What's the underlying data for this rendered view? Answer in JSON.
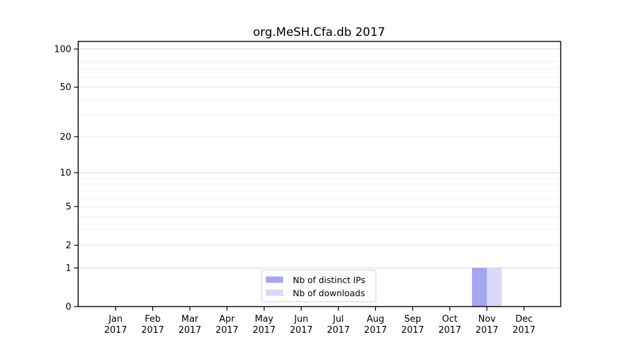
{
  "page": {
    "background": "#ffffff"
  },
  "chart_data": {
    "type": "bar",
    "title": "org.MeSH.Cfa.db 2017",
    "categories": [
      "Jan 2017",
      "Feb 2017",
      "Mar 2017",
      "Apr 2017",
      "May 2017",
      "Jun 2017",
      "Jul 2017",
      "Aug 2017",
      "Sep 2017",
      "Oct 2017",
      "Nov 2017",
      "Dec 2017"
    ],
    "series": [
      {
        "name": "Nb of distinct IPs",
        "color": "#a5a5f2",
        "values": [
          0,
          0,
          0,
          0,
          0,
          0,
          0,
          0,
          0,
          0,
          1,
          0
        ]
      },
      {
        "name": "Nb of downloads",
        "color": "#d9d9fa",
        "values": [
          0,
          0,
          0,
          0,
          0,
          0,
          0,
          0,
          0,
          0,
          1,
          0
        ]
      }
    ],
    "xlabel": "",
    "ylabel": "",
    "y_axis": {
      "scale": "log10(1+value)",
      "ticks": [
        0,
        1,
        2,
        5,
        10,
        20,
        50,
        100
      ],
      "minor_gridlines": [
        3,
        4,
        6,
        7,
        8,
        9,
        30,
        40,
        60,
        70,
        80,
        90
      ],
      "ylim": [
        0,
        115
      ]
    },
    "grid": true,
    "legend": {
      "position": "lower center",
      "border_color": "#cccccc",
      "background": "#ffffff"
    },
    "colors": {
      "axis": "#000000",
      "grid_strong": "#d8d8d8",
      "grid_medium": "#e9e9e9",
      "grid_faint": "#f2f2f2"
    }
  }
}
